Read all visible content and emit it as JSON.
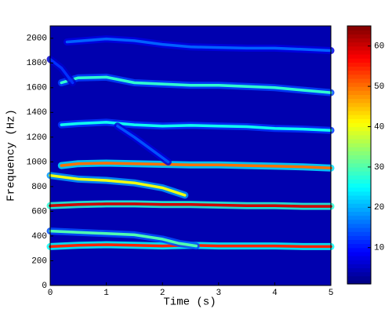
{
  "chart_data": {
    "type": "spectrogram",
    "xlabel": "Time (s)",
    "ylabel": "Frequency (Hz)",
    "xlim": [
      0,
      5
    ],
    "ylim": [
      0,
      2100
    ],
    "xticks": [
      0,
      1,
      2,
      3,
      4,
      5
    ],
    "yticks": [
      0,
      200,
      400,
      600,
      800,
      1000,
      1200,
      1400,
      1600,
      1800,
      2000
    ],
    "clim": [
      1,
      65
    ],
    "cticks": [
      10,
      20,
      30,
      40,
      50,
      60
    ],
    "background_level": 4,
    "tracks": [
      {
        "x": [
          0,
          0.5,
          1,
          1.5,
          2,
          2.5,
          3,
          3.5,
          4,
          4.5,
          5
        ],
        "values": [
          315,
          325,
          330,
          325,
          320,
          325,
          320,
          320,
          320,
          315,
          315
        ],
        "level": 55
      },
      {
        "x": [
          0,
          0.5,
          1,
          1.5,
          2,
          2.3,
          2.6
        ],
        "values": [
          440,
          430,
          420,
          410,
          375,
          340,
          320
        ],
        "level": 30
      },
      {
        "x": [
          0,
          0.5,
          1,
          1.5,
          2,
          2.5,
          3,
          3.5,
          4,
          4.5,
          5
        ],
        "values": [
          645,
          655,
          660,
          660,
          655,
          655,
          650,
          645,
          645,
          640,
          640
        ],
        "level": 60
      },
      {
        "x": [
          0,
          0.5,
          1,
          1.5,
          2,
          2.2,
          2.4
        ],
        "values": [
          890,
          860,
          850,
          830,
          790,
          760,
          730
        ],
        "level": 40
      },
      {
        "x": [
          0.2,
          0.5,
          1,
          1.5,
          2,
          2.5,
          3,
          3.5,
          4,
          4.5,
          5
        ],
        "values": [
          970,
          985,
          990,
          985,
          980,
          975,
          975,
          970,
          965,
          960,
          950
        ],
        "level": 50
      },
      {
        "x": [
          0.2,
          0.5,
          1,
          1.5,
          2,
          2.5,
          3,
          3.5,
          4,
          4.5,
          5
        ],
        "values": [
          1300,
          1310,
          1320,
          1300,
          1290,
          1295,
          1290,
          1285,
          1270,
          1265,
          1255
        ],
        "level": 26
      },
      {
        "x": [
          1.2,
          1.5,
          1.8,
          2.1
        ],
        "values": [
          1290,
          1200,
          1100,
          1000
        ],
        "level": 14
      },
      {
        "x": [
          0.2,
          0.5,
          1,
          1.5,
          2,
          2.5,
          3,
          3.5,
          4,
          4.5,
          5
        ],
        "values": [
          1640,
          1680,
          1685,
          1640,
          1630,
          1620,
          1620,
          1610,
          1600,
          1580,
          1560
        ],
        "level": 28
      },
      {
        "x": [
          0.3,
          1,
          1.5,
          2,
          2.5,
          3,
          3.5,
          4,
          4.5,
          5
        ],
        "values": [
          1970,
          1995,
          1980,
          1950,
          1930,
          1925,
          1920,
          1920,
          1910,
          1900
        ],
        "level": 15
      },
      {
        "x": [
          0,
          0.2,
          0.4
        ],
        "values": [
          1830,
          1760,
          1640
        ],
        "level": 12
      }
    ]
  }
}
